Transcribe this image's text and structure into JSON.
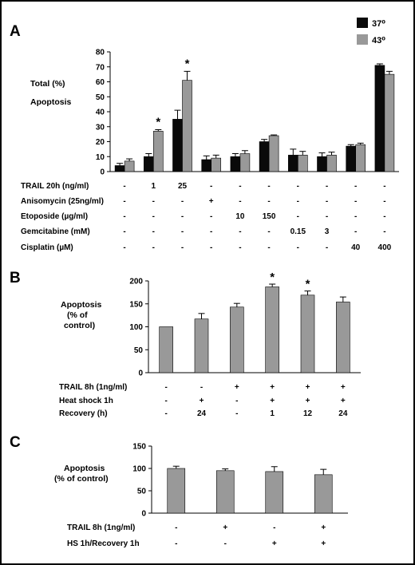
{
  "colors": {
    "dark": "#0a0a0a",
    "gray": "#999999",
    "border": "#000000"
  },
  "chart_data": [
    {
      "panel": "A",
      "type": "bar",
      "ylabel_lines": [
        "Total (%)",
        "Apoptosis"
      ],
      "ylim": [
        0,
        80
      ],
      "yticks": [
        0,
        10,
        20,
        30,
        40,
        50,
        60,
        70,
        80
      ],
      "legend": {
        "placement": "top-right",
        "entries": [
          "37⁰",
          "43⁰"
        ]
      },
      "groups": 10,
      "series": [
        {
          "name": "37⁰",
          "color": "#0a0a0a",
          "values": [
            4,
            10,
            35,
            8,
            10,
            20,
            11,
            10,
            17,
            71
          ],
          "errors": [
            1.5,
            2,
            6,
            2.5,
            2,
            1.5,
            4,
            2.5,
            1,
            1
          ]
        },
        {
          "name": "43⁰",
          "color": "#999999",
          "values": [
            7,
            27,
            61,
            9,
            12,
            24,
            11,
            11,
            18,
            65
          ],
          "errors": [
            1.5,
            1,
            6,
            2,
            2,
            0.5,
            2.5,
            2,
            1,
            2
          ]
        }
      ],
      "significant_groups": [
        1,
        2
      ],
      "significance_marker": "*",
      "conditions": [
        {
          "label": "TRAIL 20h (ng/ml)",
          "values": [
            "-",
            "1",
            "25",
            "-",
            "-",
            "-",
            "-",
            "-",
            "-",
            "-"
          ]
        },
        {
          "label": "Anisomycin (25ng/ml)",
          "values": [
            "-",
            "-",
            "-",
            "+",
            "-",
            "-",
            "-",
            "-",
            "-",
            "-"
          ]
        },
        {
          "label": "Etoposide (µg/ml)",
          "values": [
            "-",
            "-",
            "-",
            "-",
            "10",
            "150",
            "-",
            "-",
            "-",
            "-"
          ]
        },
        {
          "label": "Gemcitabine (mM)",
          "values": [
            "-",
            "-",
            "-",
            "-",
            "-",
            "-",
            "0.15",
            "3",
            "-",
            "-"
          ]
        },
        {
          "label": "Cisplatin (µM)",
          "values": [
            "-",
            "-",
            "-",
            "-",
            "-",
            "-",
            "-",
            "-",
            "40",
            "400"
          ]
        }
      ]
    },
    {
      "panel": "B",
      "type": "bar",
      "ylabel_lines": [
        "Apoptosis",
        "(% of",
        "control)"
      ],
      "ylim": [
        0,
        200
      ],
      "yticks": [
        0,
        50,
        100,
        150,
        200
      ],
      "values": [
        100,
        117,
        143,
        187,
        169,
        154
      ],
      "errors": [
        0,
        12,
        8,
        6,
        9,
        11
      ],
      "color": "#999999",
      "significant_bars": [
        3,
        4
      ],
      "significance_marker": "*",
      "conditions": [
        {
          "label": "TRAIL 8h (1ng/ml)",
          "values": [
            "-",
            "-",
            "+",
            "+",
            "+",
            "+"
          ]
        },
        {
          "label": "Heat shock 1h",
          "values": [
            "-",
            "+",
            "-",
            "+",
            "+",
            "+"
          ]
        },
        {
          "label": "Recovery (h)",
          "values": [
            "-",
            "24",
            "-",
            "1",
            "12",
            "24"
          ]
        }
      ]
    },
    {
      "panel": "C",
      "type": "bar",
      "ylabel_lines": [
        "Apoptosis",
        "(% of control)"
      ],
      "ylim": [
        0,
        150
      ],
      "yticks": [
        0,
        50,
        100,
        150
      ],
      "values": [
        100,
        95,
        93,
        86
      ],
      "errors": [
        5,
        4,
        11,
        12
      ],
      "color": "#999999",
      "conditions": [
        {
          "label": "TRAIL 8h  (1ng/ml)",
          "values": [
            "-",
            "+",
            "-",
            "+"
          ]
        },
        {
          "label": "HS 1h/Recovery 1h",
          "values": [
            "-",
            "-",
            "+",
            "+"
          ]
        }
      ]
    }
  ]
}
